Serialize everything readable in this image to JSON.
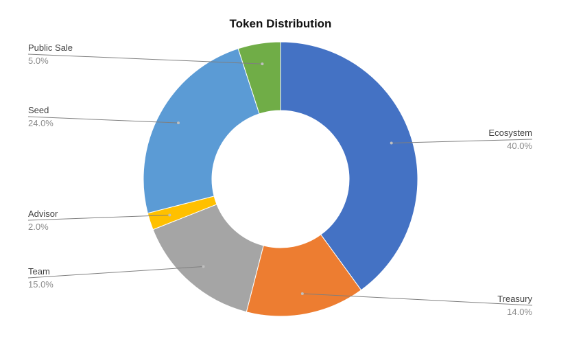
{
  "chart_data": {
    "type": "pie",
    "variant": "donut",
    "title": "Token Distribution",
    "slices": [
      {
        "label": "Ecosystem",
        "value": 40.0,
        "display": "40.0%",
        "color": "#4472C4",
        "label_side": "right"
      },
      {
        "label": "Treasury",
        "value": 14.0,
        "display": "14.0%",
        "color": "#ED7D31",
        "label_side": "right"
      },
      {
        "label": "Team",
        "value": 15.0,
        "display": "15.0%",
        "color": "#A5A5A5",
        "label_side": "left"
      },
      {
        "label": "Advisor",
        "value": 2.0,
        "display": "2.0%",
        "color": "#FFC000",
        "label_side": "left"
      },
      {
        "label": "Seed",
        "value": 24.0,
        "display": "24.0%",
        "color": "#5B9BD5",
        "label_side": "left"
      },
      {
        "label": "Public Sale",
        "value": 5.0,
        "display": "5.0%",
        "color": "#70AD47",
        "label_side": "left"
      }
    ],
    "start_angle": "12 o'clock",
    "direction": "clockwise",
    "legend": "none",
    "data_labels": "outside with leader lines"
  }
}
